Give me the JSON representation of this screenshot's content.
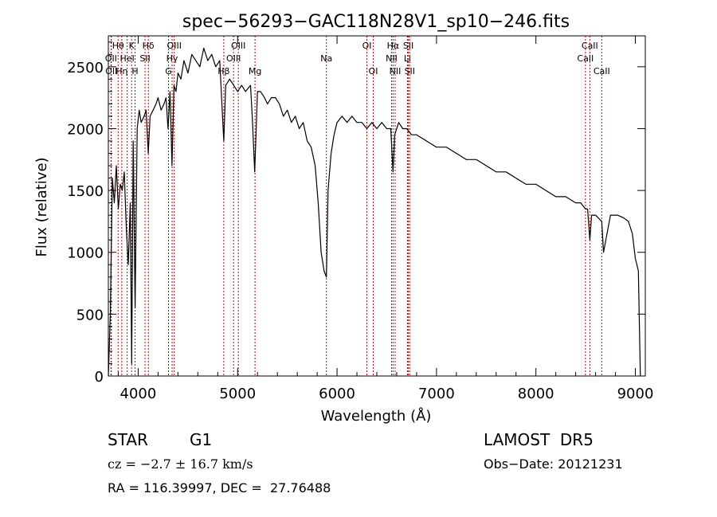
{
  "chart_data": {
    "type": "line",
    "title": "spec−56293−GAC118N28V1_sp10−246.fits",
    "xlabel": "Wavelength (Å)",
    "ylabel": "Flux (relative)",
    "xlim": [
      3700,
      9100
    ],
    "ylim": [
      0,
      2750
    ],
    "xticks": [
      4000,
      5000,
      6000,
      7000,
      8000,
      9000
    ],
    "yticks": [
      0,
      500,
      1000,
      1500,
      2000,
      2500
    ],
    "grid": false,
    "line_color": "#000000",
    "marker_color": "#cc0000",
    "series": [
      {
        "x": [
          3700,
          3720,
          3740,
          3760,
          3780,
          3800,
          3820,
          3840,
          3860,
          3880,
          3900,
          3920,
          3935,
          3950,
          3969,
          3990,
          4010,
          4030,
          4060,
          4080,
          4101,
          4120,
          4150,
          4180,
          4200,
          4230,
          4260,
          4280,
          4300,
          4320,
          4340,
          4360,
          4380,
          4400,
          4430,
          4460,
          4500,
          4540,
          4580,
          4620,
          4660,
          4700,
          4740,
          4780,
          4820,
          4861,
          4880,
          4920,
          4960,
          5000,
          5040,
          5080,
          5130,
          5150,
          5172,
          5200,
          5230,
          5270,
          5300,
          5340,
          5380,
          5420,
          5460,
          5500,
          5540,
          5580,
          5620,
          5660,
          5700,
          5740,
          5780,
          5810,
          5840,
          5870,
          5893,
          5910,
          5940,
          5970,
          6000,
          6050,
          6100,
          6150,
          6200,
          6250,
          6300,
          6350,
          6400,
          6450,
          6500,
          6540,
          6563,
          6580,
          6620,
          6660,
          6700,
          6750,
          6800,
          6900,
          7000,
          7100,
          7200,
          7300,
          7400,
          7500,
          7600,
          7700,
          7800,
          7900,
          8000,
          8100,
          8200,
          8300,
          8400,
          8450,
          8498,
          8520,
          8542,
          8560,
          8600,
          8662,
          8680,
          8750,
          8820,
          8880,
          8930,
          8970,
          9000,
          9030,
          9050
        ],
        "y": [
          0,
          500,
          1600,
          1400,
          1700,
          1350,
          1550,
          1500,
          1650,
          1200,
          900,
          1400,
          100,
          1900,
          550,
          2000,
          2150,
          2050,
          2100,
          2150,
          1800,
          2100,
          2150,
          2200,
          2250,
          2150,
          2200,
          2250,
          2000,
          2300,
          1700,
          2350,
          2300,
          2450,
          2400,
          2550,
          2450,
          2600,
          2550,
          2500,
          2650,
          2550,
          2600,
          2500,
          2550,
          1900,
          2350,
          2400,
          2350,
          2300,
          2350,
          2300,
          2350,
          2050,
          1650,
          2300,
          2300,
          2250,
          2200,
          2250,
          2250,
          2200,
          2100,
          2150,
          2050,
          2100,
          2000,
          2050,
          1900,
          1850,
          1700,
          1400,
          1000,
          850,
          800,
          1500,
          1800,
          1950,
          2050,
          2100,
          2050,
          2100,
          2050,
          2050,
          2000,
          2050,
          2000,
          2050,
          2000,
          2000,
          1650,
          1950,
          2050,
          2000,
          2000,
          1950,
          1950,
          1900,
          1850,
          1850,
          1800,
          1750,
          1750,
          1700,
          1650,
          1650,
          1600,
          1550,
          1550,
          1500,
          1450,
          1450,
          1400,
          1400,
          1350,
          1350,
          1100,
          1300,
          1300,
          1250,
          1000,
          1300,
          1300,
          1280,
          1250,
          1150,
          950,
          850,
          0
        ]
      }
    ],
    "lines": [
      {
        "label": "Hθ",
        "x": 3798,
        "row": 0
      },
      {
        "label": "OII",
        "x": 3727,
        "row": 1
      },
      {
        "label": "OII",
        "x": 3730,
        "row": 2
      },
      {
        "label": "K",
        "x": 3934,
        "row": 0
      },
      {
        "label": "Hη",
        "x": 3835,
        "row": 2
      },
      {
        "label": "HeI",
        "x": 3889,
        "row": 1
      },
      {
        "label": "H",
        "x": 3969,
        "row": 2
      },
      {
        "label": "SII",
        "x": 4069,
        "row": 1
      },
      {
        "label": "Hδ",
        "x": 4102,
        "row": 0
      },
      {
        "label": "OIII",
        "x": 4363,
        "row": 0
      },
      {
        "label": "Hγ",
        "x": 4341,
        "row": 1
      },
      {
        "label": "G",
        "x": 4305,
        "row": 2
      },
      {
        "label": "OIII",
        "x": 5007,
        "row": 0
      },
      {
        "label": "OIII",
        "x": 4959,
        "row": 1
      },
      {
        "label": "Hβ",
        "x": 4861,
        "row": 2
      },
      {
        "label": "Mg",
        "x": 5175,
        "row": 2
      },
      {
        "label": "Na",
        "x": 5893,
        "row": 1
      },
      {
        "label": "OI",
        "x": 6300,
        "row": 0
      },
      {
        "label": "OI",
        "x": 6364,
        "row": 2
      },
      {
        "label": "Hα",
        "x": 6563,
        "row": 0
      },
      {
        "label": "SII",
        "x": 6717,
        "row": 0
      },
      {
        "label": "NII",
        "x": 6548,
        "row": 1
      },
      {
        "label": "Li",
        "x": 6708,
        "row": 1
      },
      {
        "label": "NII",
        "x": 6584,
        "row": 2
      },
      {
        "label": "SII",
        "x": 6731,
        "row": 2
      },
      {
        "label": "CaII",
        "x": 8542,
        "row": 0
      },
      {
        "label": "CaII",
        "x": 8498,
        "row": 1
      },
      {
        "label": "CaII",
        "x": 8662,
        "row": 2
      }
    ]
  },
  "info": {
    "class_label": "STAR",
    "subclass_label": "G1",
    "survey": "LAMOST  DR5",
    "redshift": "cz = −2.7 ± 16.7 km/s",
    "obs_date": "Obs−Date: 20121231",
    "coords": "RA = 116.39997, DEC =  27.76488"
  }
}
